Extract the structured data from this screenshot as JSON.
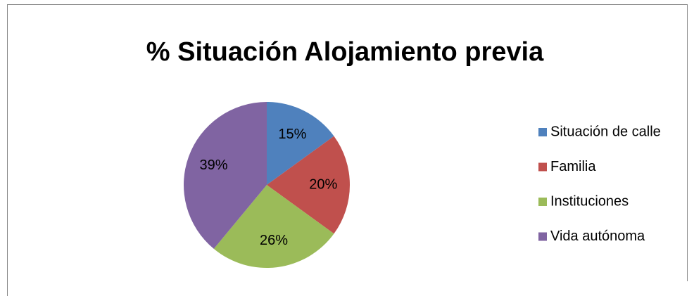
{
  "chart_data": {
    "type": "pie",
    "title": "% Situación Alojamiento previa",
    "categories": [
      "Situación de calle",
      "Familia",
      "Instituciones",
      "Vida autónoma"
    ],
    "values": [
      15,
      20,
      26,
      39
    ],
    "value_labels": [
      "15%",
      "20%",
      "26%",
      "39%"
    ],
    "colors": [
      "#4f81bd",
      "#c0504d",
      "#9bbb59",
      "#8064a2"
    ],
    "legend": "right"
  }
}
